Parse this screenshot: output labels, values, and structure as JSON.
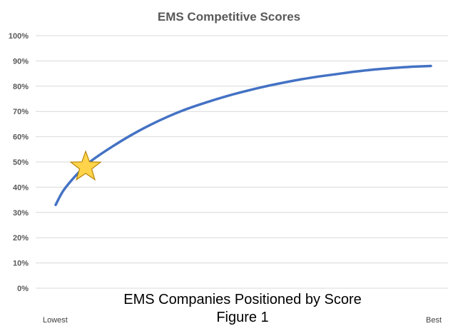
{
  "chart_data": {
    "type": "line",
    "title": "EMS Competitive Scores",
    "xlabel": "EMS Companies Positioned by Score",
    "caption": "Figure 1",
    "x_start_label": "Lowest",
    "x_end_label": "Best",
    "ylim": [
      0,
      100
    ],
    "y_ticks": [
      "0%",
      "10%",
      "20%",
      "30%",
      "40%",
      "50%",
      "60%",
      "70%",
      "80%",
      "90%",
      "100%"
    ],
    "grid": true,
    "series": [
      {
        "color": "#4472c4",
        "x": [
          0,
          0.02,
          0.05,
          0.08,
          0.1,
          0.15,
          0.2,
          0.25,
          0.3,
          0.35,
          0.4,
          0.45,
          0.5,
          0.55,
          0.6,
          0.65,
          0.7,
          0.75,
          0.8,
          0.85,
          0.9,
          0.95,
          1
        ],
        "values": [
          33,
          38.5,
          44,
          48.5,
          51,
          56,
          60.5,
          64.5,
          68,
          71,
          73.5,
          75.8,
          77.8,
          79.6,
          81.2,
          82.6,
          83.8,
          84.8,
          85.8,
          86.6,
          87.2,
          87.7,
          88
        ]
      }
    ],
    "marker": {
      "shape": "star",
      "x": 0.08,
      "value": 48,
      "fill": "#ffd44a",
      "stroke": "#b8860b"
    }
  }
}
